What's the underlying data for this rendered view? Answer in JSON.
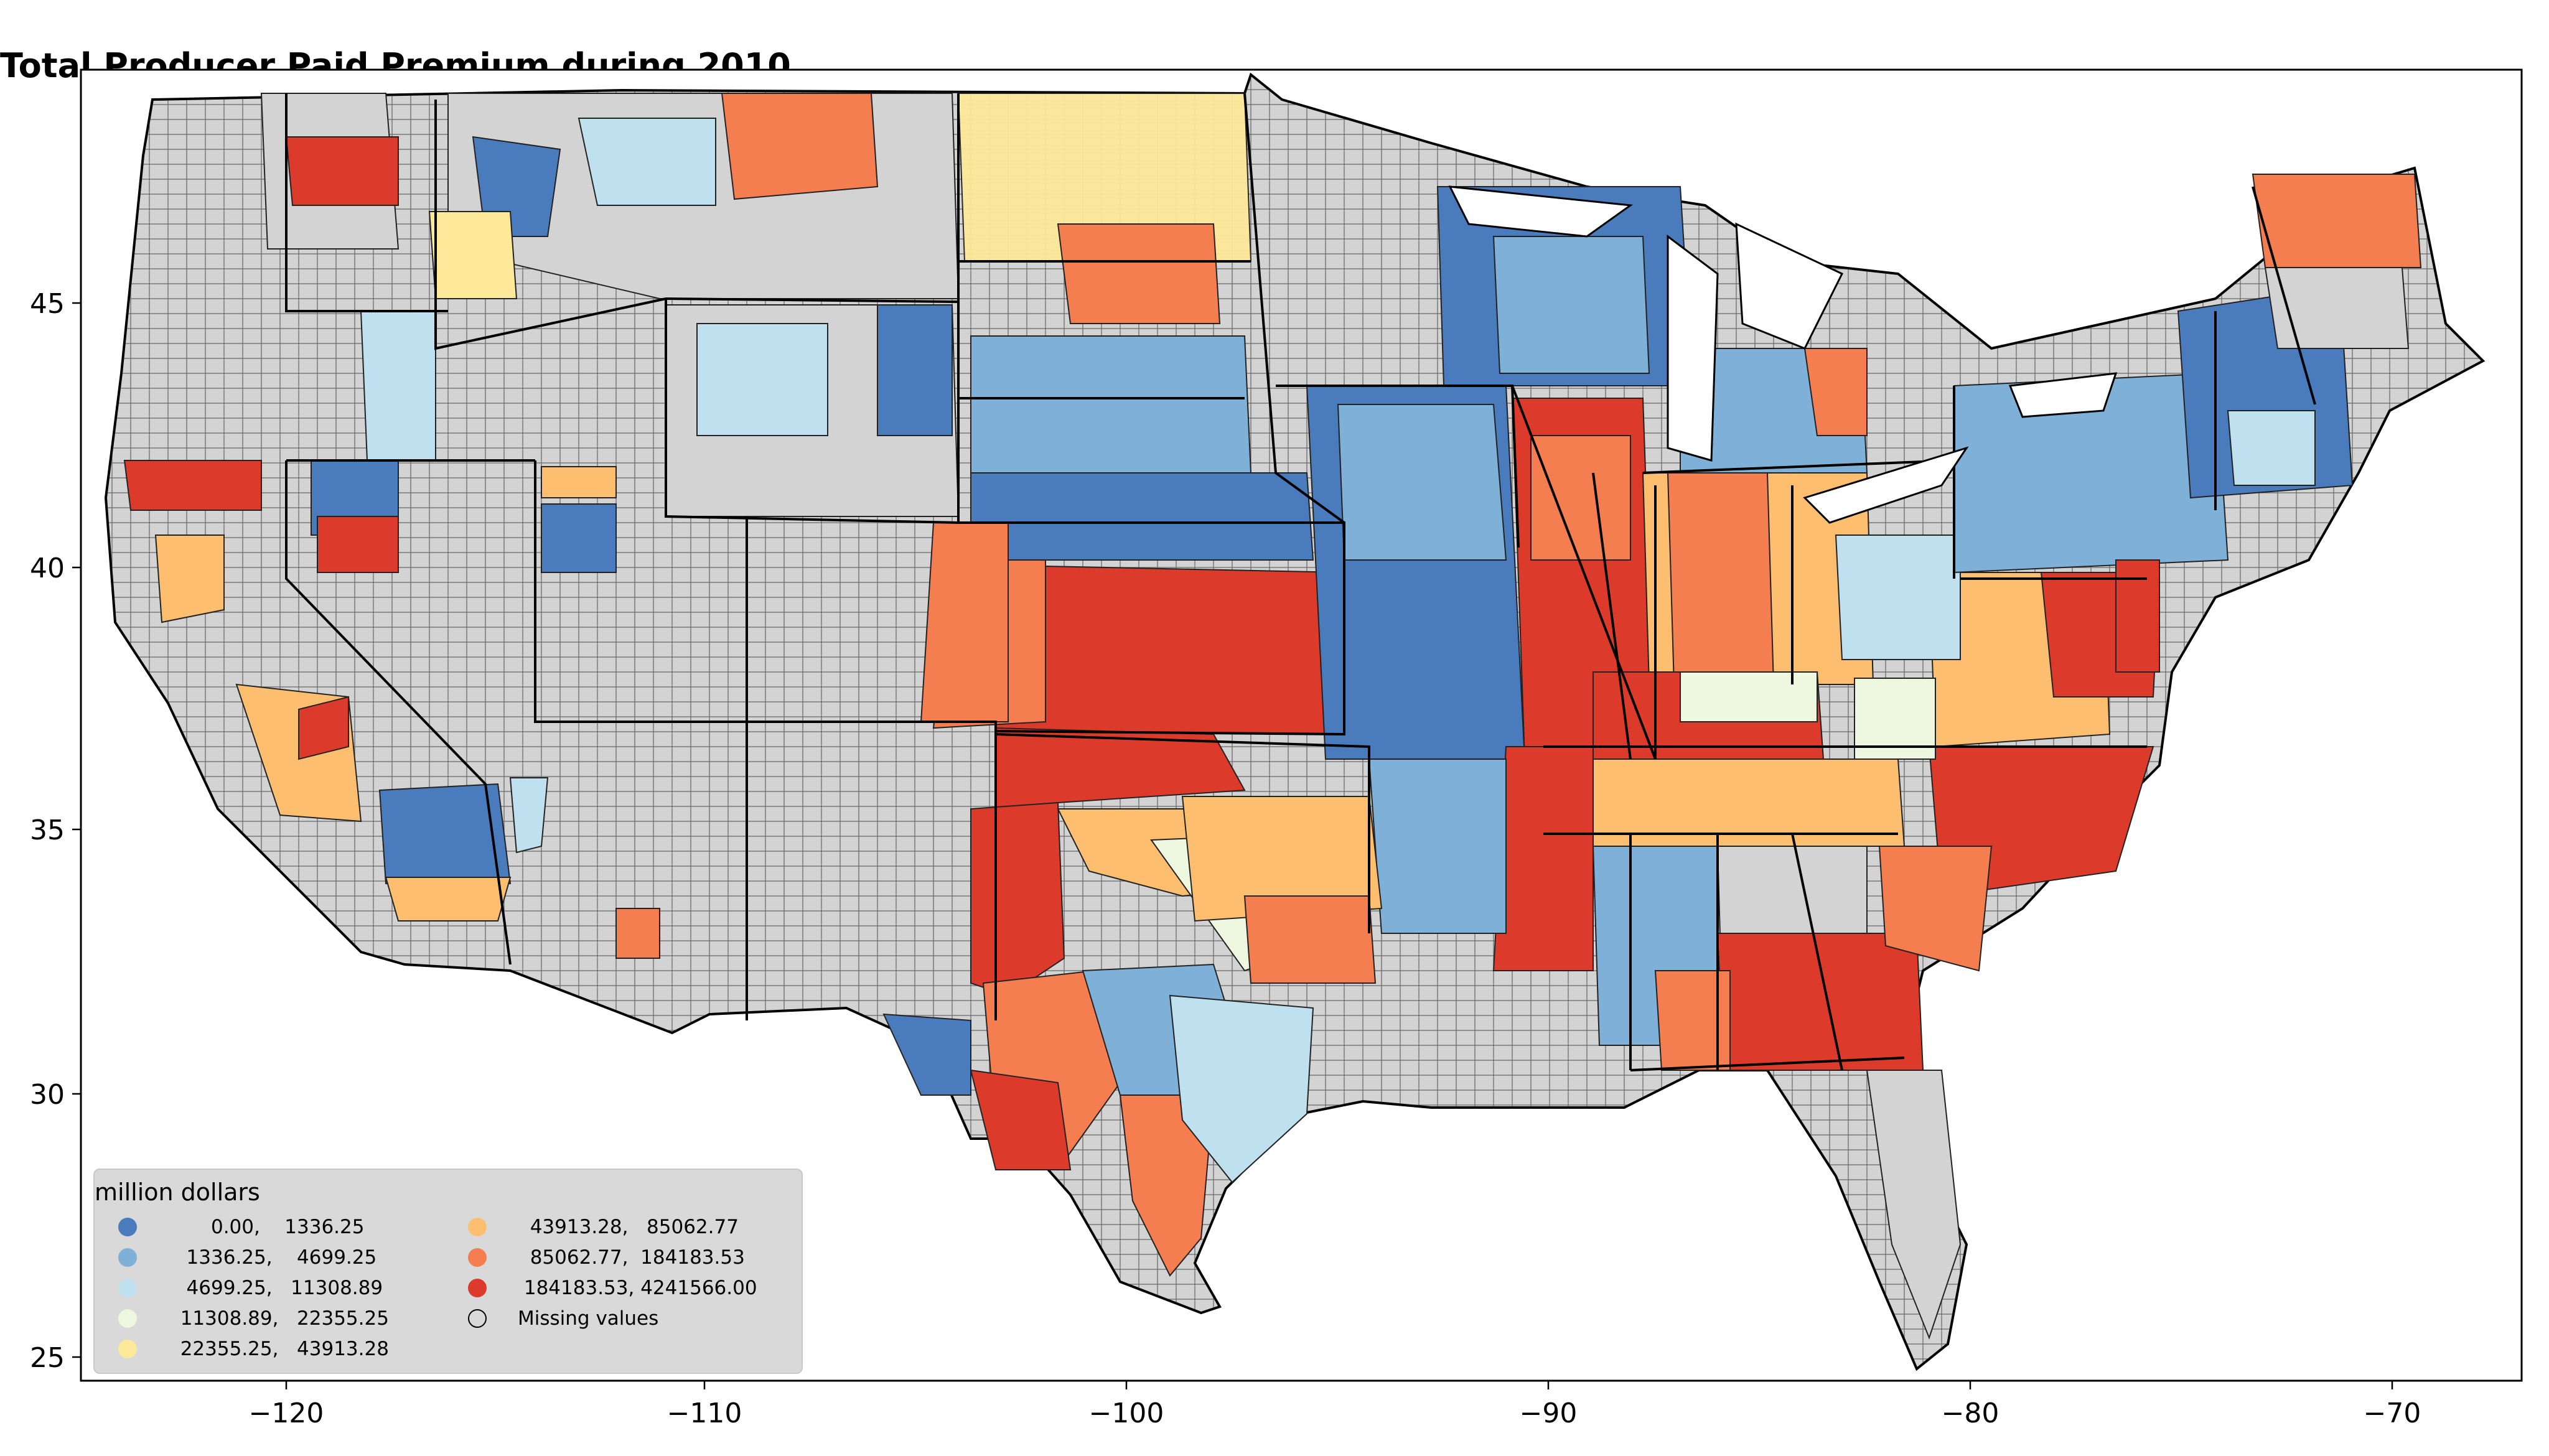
{
  "title": "Total Producer Paid Premium during 2010",
  "axes": {
    "x_ticks": [
      "−120",
      "−110",
      "−100",
      "−90",
      "−80",
      "−70"
    ],
    "y_ticks": [
      "45",
      "40",
      "35",
      "30",
      "25"
    ]
  },
  "legend": {
    "title": "million dollars",
    "items": [
      {
        "label": "       0.00,    1336.25",
        "color": "#4a7bbd"
      },
      {
        "label": "   1336.25,    4699.25",
        "color": "#7fb0d8"
      },
      {
        "label": "   4699.25,   11308.89",
        "color": "#bfe0ef"
      },
      {
        "label": "  11308.89,   22355.25",
        "color": "#eef7df"
      },
      {
        "label": "  22355.25,   43913.28",
        "color": "#fee99a"
      },
      {
        "label": "  43913.28,   85062.77",
        "color": "#fdbf6f"
      },
      {
        "label": "  85062.77,  184183.53",
        "color": "#f47e4f"
      },
      {
        "label": " 184183.53, 4241566.00",
        "color": "#dc3b2c"
      },
      {
        "label": "Missing values",
        "color": "#d3d3d3"
      }
    ]
  }
}
